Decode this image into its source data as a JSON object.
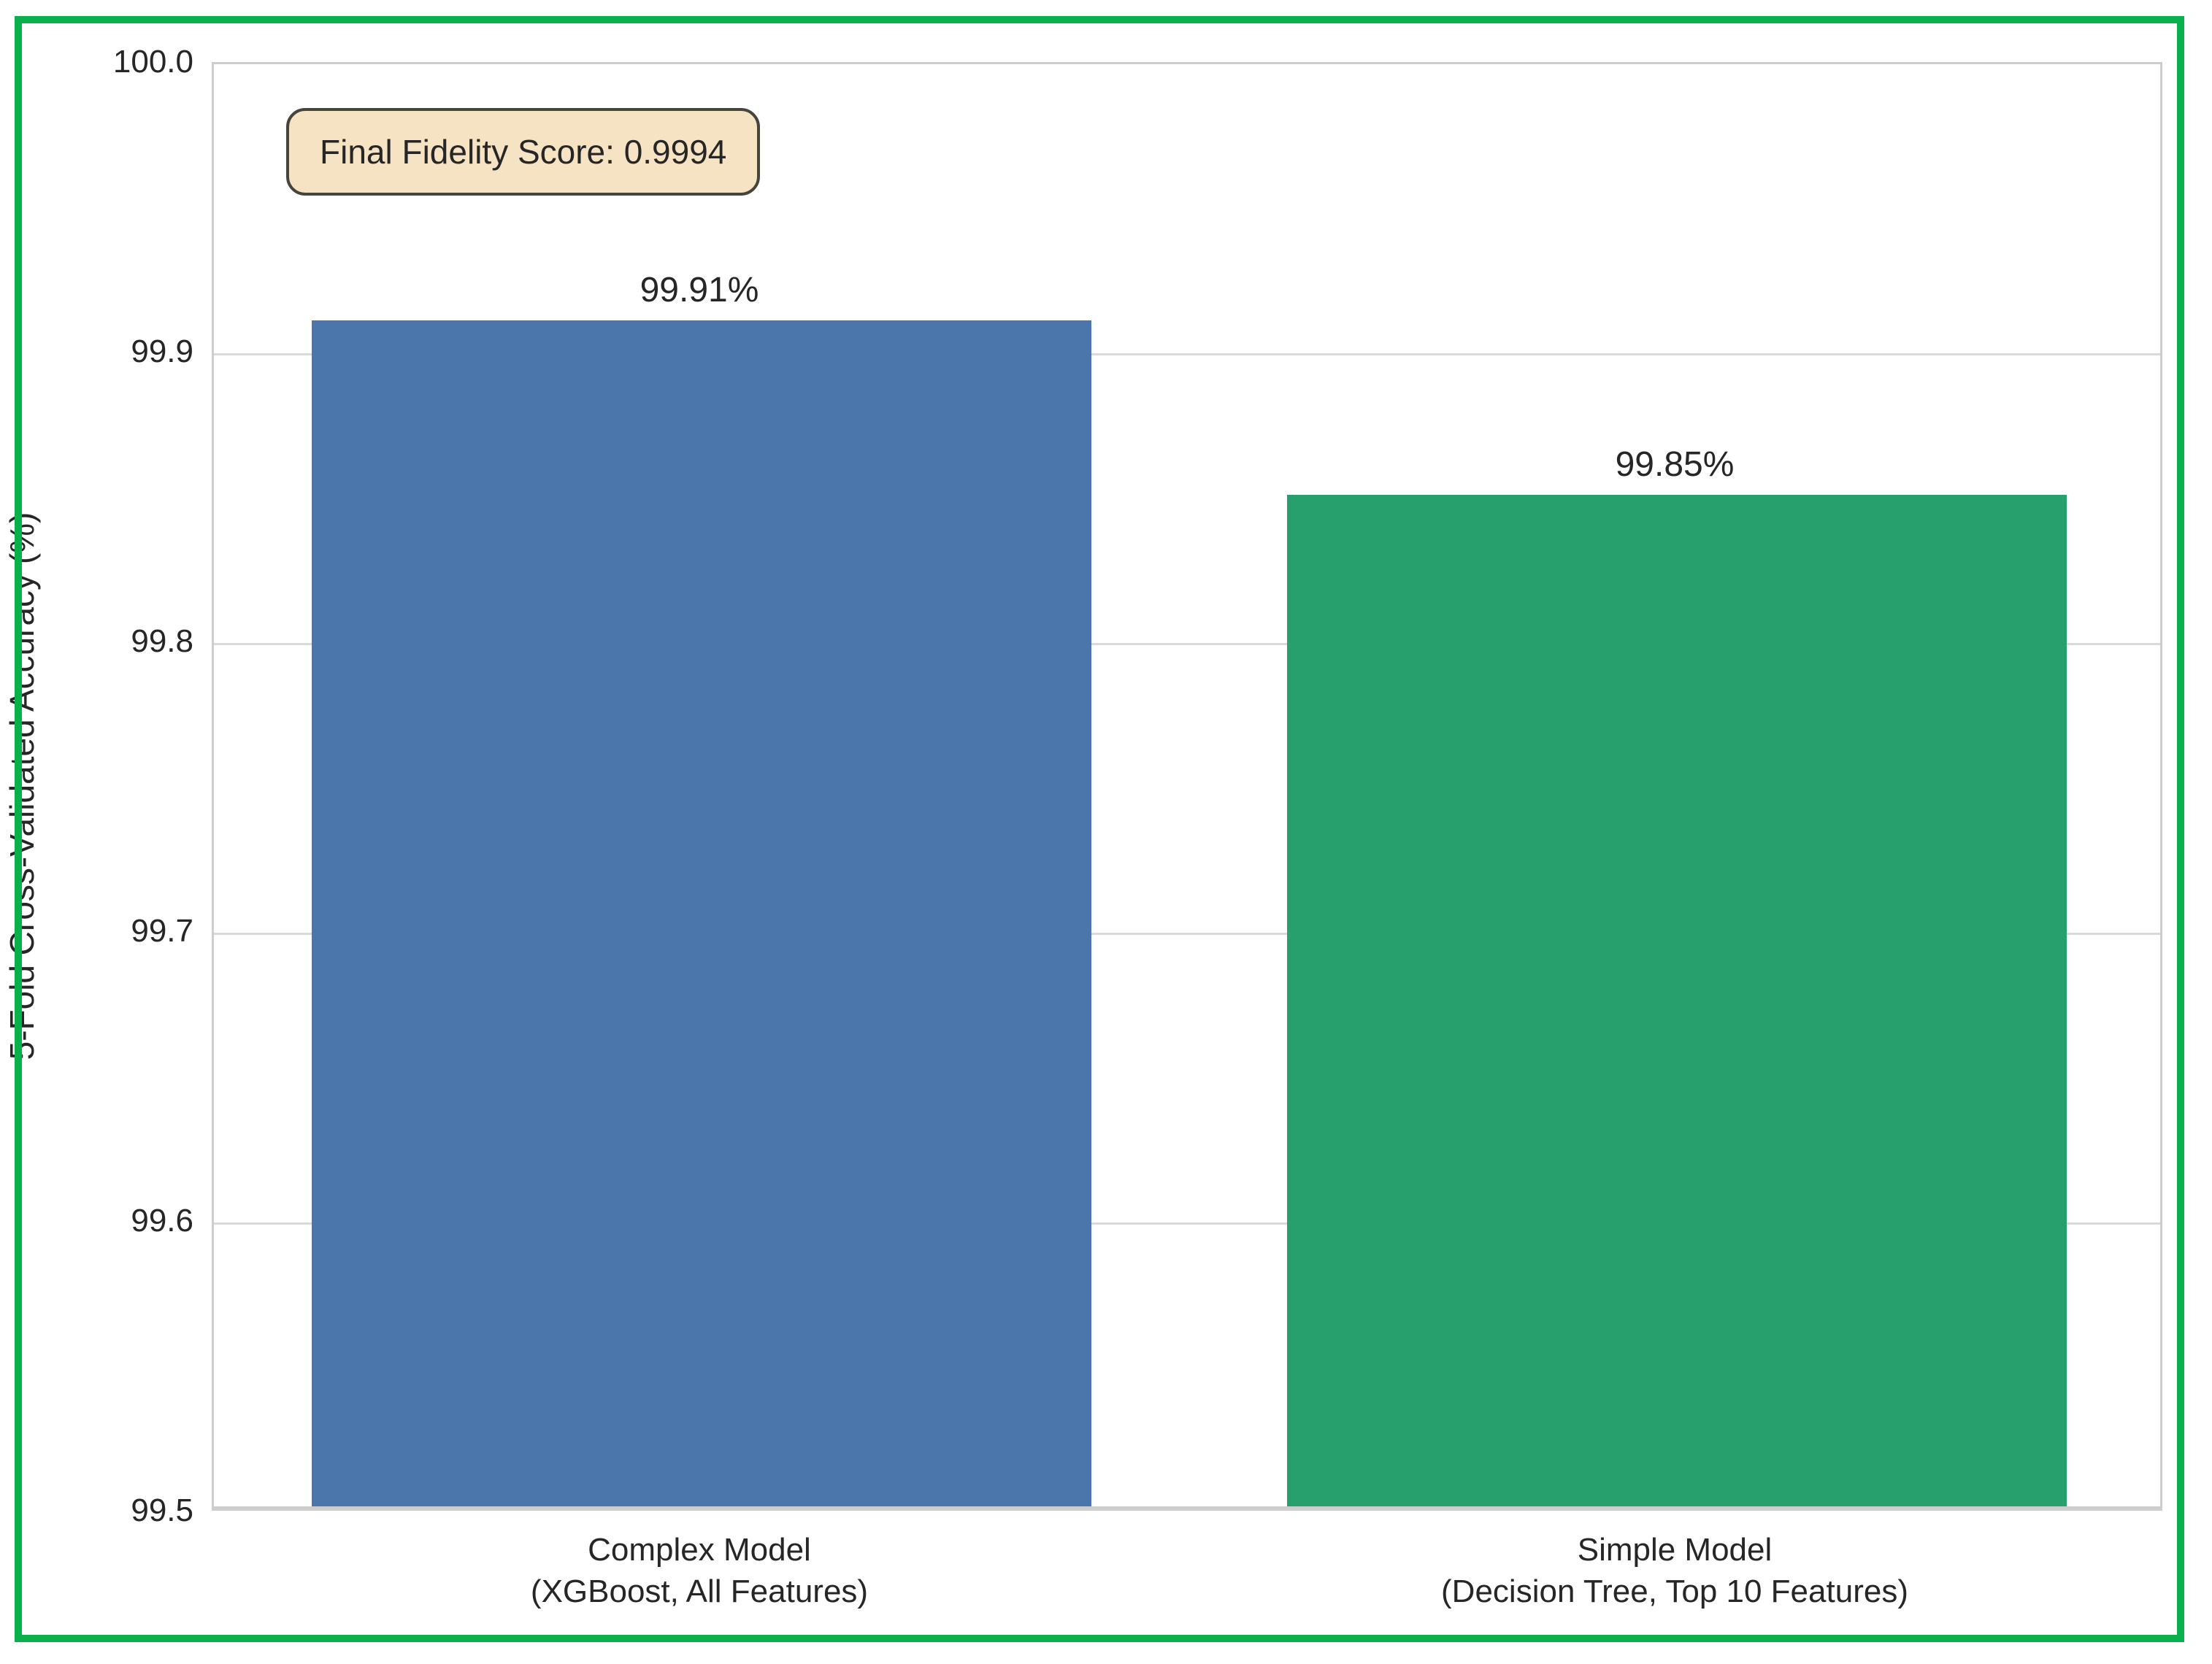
{
  "frame": {
    "border_color": "#0ab04c"
  },
  "annotation": {
    "text": "Final Fidelity Score: 0.9994",
    "background_color": "#f6e3c3",
    "border_color": "#45453e"
  },
  "chart_data": {
    "type": "bar",
    "title": "",
    "xlabel": "",
    "ylabel": "5-Fold Cross-Validated Accuracy (%)",
    "categories": [
      [
        "Complex Model",
        "(XGBoost, All Features)"
      ],
      [
        "Simple Model",
        "(Decision Tree, Top 10 Features)"
      ]
    ],
    "values": [
      99.91,
      99.85
    ],
    "bar_labels": [
      "99.91%",
      "99.85%"
    ],
    "bar_colors": [
      "#4a76ab",
      "#27a06e"
    ],
    "ylim": [
      99.5,
      100.0
    ],
    "yticks": [
      99.5,
      99.6,
      99.7,
      99.8,
      99.9,
      100.0
    ],
    "ytick_labels": [
      "99.5",
      "99.6",
      "99.7",
      "99.8",
      "99.9",
      "100.0"
    ],
    "grid": "horizontal",
    "grid_color": "#d9d9d9",
    "legend_position": "none",
    "bar_width_fraction": 0.8
  }
}
